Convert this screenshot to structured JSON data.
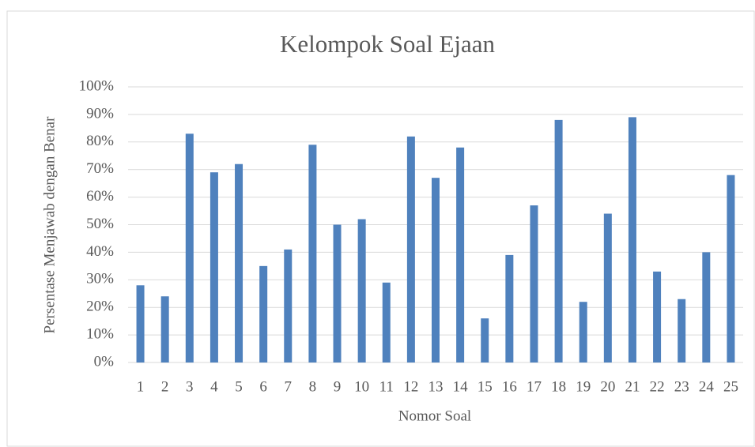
{
  "chart_data": {
    "type": "bar",
    "title": "Kelompok Soal Ejaan",
    "x_label": "Nomor Soal",
    "y_label": "Persentase Menjawab dengan  Benar",
    "categories": [
      "1",
      "2",
      "3",
      "4",
      "5",
      "6",
      "7",
      "8",
      "9",
      "10",
      "11",
      "12",
      "13",
      "14",
      "15",
      "16",
      "17",
      "18",
      "19",
      "20",
      "21",
      "22",
      "23",
      "24",
      "25"
    ],
    "values": [
      28,
      24,
      83,
      69,
      72,
      35,
      41,
      79,
      50,
      52,
      29,
      82,
      67,
      78,
      16,
      39,
      57,
      88,
      22,
      54,
      89,
      33,
      23,
      40,
      68
    ],
    "color": "#4f81bd",
    "ylim": [
      0,
      100
    ],
    "yticks": [
      {
        "value": 0,
        "label": "0%"
      },
      {
        "value": 10,
        "label": "10%"
      },
      {
        "value": 20,
        "label": "20%"
      },
      {
        "value": 30,
        "label": "30%"
      },
      {
        "value": 40,
        "label": "40%"
      },
      {
        "value": 50,
        "label": "50%"
      },
      {
        "value": 60,
        "label": "60%"
      },
      {
        "value": 70,
        "label": "70%"
      },
      {
        "value": 80,
        "label": "80%"
      },
      {
        "value": 90,
        "label": "90%"
      },
      {
        "value": 100,
        "label": "100%"
      }
    ],
    "grid": true
  }
}
